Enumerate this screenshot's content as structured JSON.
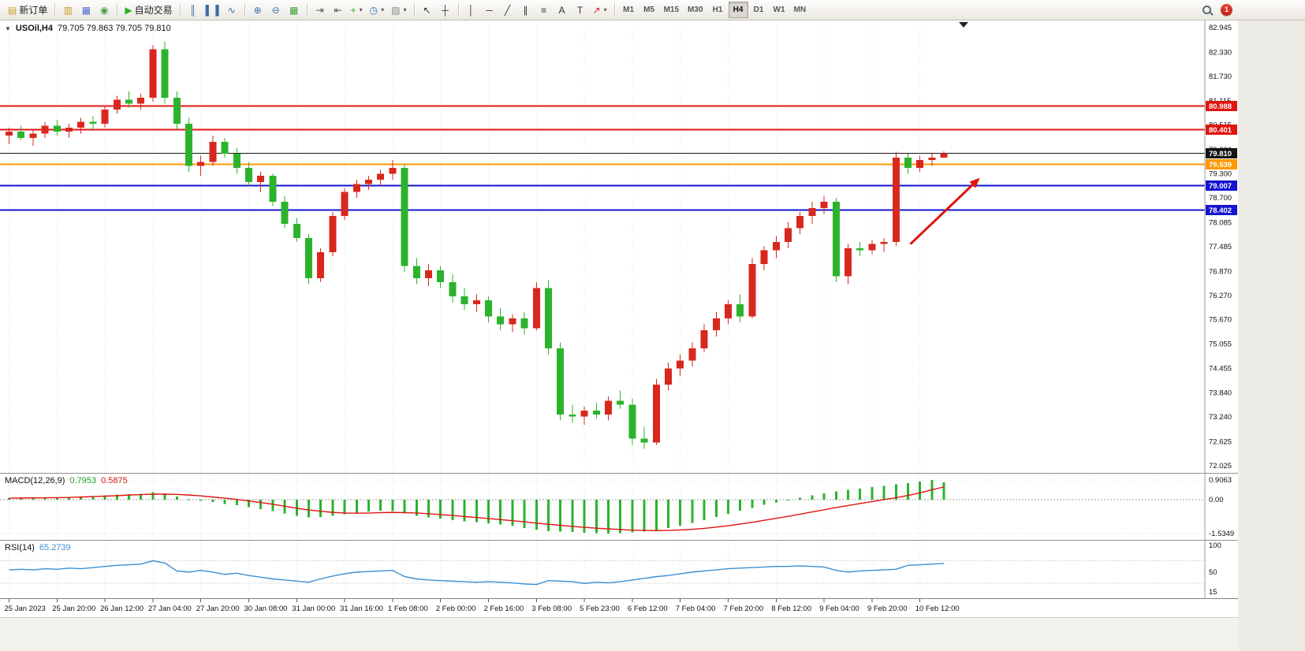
{
  "toolbar": {
    "badge": "1",
    "active_timeframe": "H4",
    "timeframes": [
      "M1",
      "M5",
      "M15",
      "M30",
      "H1",
      "H4",
      "D1",
      "W1",
      "MN"
    ],
    "groups": [
      {
        "items": [
          {
            "name": "new-order",
            "label": "新订单",
            "glyph": "▤",
            "color": "#c89b2a"
          }
        ]
      },
      {
        "items": [
          {
            "name": "charts",
            "glyph": "▥",
            "color": "#c89b2a"
          },
          {
            "name": "profiles",
            "glyph": "▦",
            "color": "#4a6fd4"
          },
          {
            "name": "data-window",
            "glyph": "◉",
            "color": "#4a9e4a"
          }
        ]
      },
      {
        "items": [
          {
            "name": "auto-trading",
            "label": "自动交易",
            "glyph": "▶",
            "color": "#2cb32c"
          }
        ]
      },
      {
        "items": [
          {
            "name": "bar-chart",
            "glyph": "║",
            "color": "#3a6ea5"
          },
          {
            "name": "candlestick-chart",
            "glyph": "▌▐",
            "color": "#3a6ea5"
          },
          {
            "name": "line-chart",
            "glyph": "∿",
            "color": "#3a6ea5"
          }
        ]
      },
      {
        "items": [
          {
            "name": "zoom-in",
            "glyph": "⊕",
            "color": "#3a6ea5"
          },
          {
            "name": "zoom-out",
            "glyph": "⊖",
            "color": "#3a6ea5"
          },
          {
            "name": "tile-windows",
            "glyph": "▦",
            "color": "#3aa53a"
          }
        ]
      },
      {
        "items": [
          {
            "name": "auto-scroll",
            "glyph": "⇥",
            "color": "#555555"
          },
          {
            "name": "chart-shift",
            "glyph": "⇤",
            "color": "#555555"
          },
          {
            "name": "indicators",
            "glyph": "+",
            "color": "#2cb32c",
            "caret": true
          },
          {
            "name": "periods",
            "glyph": "◷",
            "color": "#3a6ea5",
            "caret": true
          },
          {
            "name": "templates",
            "glyph": "▨",
            "color": "#8a8a8a",
            "caret": true
          }
        ]
      },
      {
        "items": [
          {
            "name": "cursor",
            "glyph": "↖",
            "color": "#333333"
          },
          {
            "name": "crosshair",
            "glyph": "┼",
            "color": "#333333"
          }
        ]
      },
      {
        "items": [
          {
            "name": "vertical-line",
            "glyph": "│",
            "color": "#333333"
          },
          {
            "name": "horizontal-line",
            "glyph": "─",
            "color": "#333333"
          },
          {
            "name": "trendline",
            "glyph": "╱",
            "color": "#333333"
          },
          {
            "name": "equidistant-channel",
            "glyph": "∥",
            "color": "#333333"
          },
          {
            "name": "fibonacci",
            "glyph": "≡",
            "color": "#333333"
          },
          {
            "name": "text",
            "glyph": "A",
            "color": "#333333"
          },
          {
            "name": "text-label",
            "glyph": "T",
            "color": "#333333"
          },
          {
            "name": "arrows",
            "glyph": "↗",
            "color": "#cc2222",
            "caret": true
          }
        ]
      }
    ]
  },
  "chart_data": {
    "type": "candlestick",
    "symbol": "USOil",
    "period": "H4",
    "header": {
      "collapse_glyph": "▼",
      "title": "USOil,H4",
      "ohlc": "79.705 79.863 79.705 79.810"
    },
    "current_bar": {
      "open": 79.705,
      "high": 79.863,
      "low": 79.705,
      "close": 79.81
    },
    "colors": {
      "up": "#d8281e",
      "down": "#2cb32c"
    },
    "price_max": 82.945,
    "price_min": 72.025,
    "price_axis_ticks": [
      "82.945",
      "82.330",
      "81.730",
      "81.115",
      "80.515",
      "79.900",
      "79.300",
      "78.700",
      "78.085",
      "77.485",
      "76.870",
      "76.270",
      "75.670",
      "75.055",
      "74.455",
      "73.840",
      "73.240",
      "72.625",
      "72.025"
    ],
    "time_ticks": [
      {
        "i": 0,
        "label": "25 Jan 2023"
      },
      {
        "i": 4,
        "label": "25 Jan 20:00"
      },
      {
        "i": 8,
        "label": "26 Jan 12:00"
      },
      {
        "i": 12,
        "label": "27 Jan 04:00"
      },
      {
        "i": 16,
        "label": "27 Jan 20:00"
      },
      {
        "i": 20,
        "label": "30 Jan 08:00"
      },
      {
        "i": 24,
        "label": "31 Jan 00:00"
      },
      {
        "i": 28,
        "label": "31 Jan 16:00"
      },
      {
        "i": 32,
        "label": "1 Feb 08:00"
      },
      {
        "i": 36,
        "label": "2 Feb 00:00"
      },
      {
        "i": 40,
        "label": "2 Feb 16:00"
      },
      {
        "i": 44,
        "label": "3 Feb 08:00"
      },
      {
        "i": 48,
        "label": "5 Feb 23:00"
      },
      {
        "i": 52,
        "label": "6 Feb 12:00"
      },
      {
        "i": 56,
        "label": "7 Feb 04:00"
      },
      {
        "i": 60,
        "label": "7 Feb 20:00"
      },
      {
        "i": 64,
        "label": "8 Feb 12:00"
      },
      {
        "i": 68,
        "label": "9 Feb 04:00"
      },
      {
        "i": 72,
        "label": "9 Feb 20:00"
      },
      {
        "i": 76,
        "label": "10 Feb 12:00"
      }
    ],
    "candles": [
      [
        80.25,
        80.45,
        80.05,
        80.35
      ],
      [
        80.35,
        80.5,
        80.15,
        80.2
      ],
      [
        80.2,
        80.4,
        80.0,
        80.3
      ],
      [
        80.3,
        80.6,
        80.2,
        80.5
      ],
      [
        80.5,
        80.65,
        80.25,
        80.35
      ],
      [
        80.35,
        80.55,
        80.2,
        80.45
      ],
      [
        80.45,
        80.7,
        80.3,
        80.6
      ],
      [
        80.6,
        80.75,
        80.4,
        80.55
      ],
      [
        80.55,
        81.0,
        80.45,
        80.9
      ],
      [
        80.9,
        81.25,
        80.8,
        81.15
      ],
      [
        81.15,
        81.35,
        80.95,
        81.05
      ],
      [
        81.05,
        81.3,
        80.9,
        81.2
      ],
      [
        81.2,
        82.5,
        81.1,
        82.4
      ],
      [
        82.4,
        82.6,
        81.05,
        81.2
      ],
      [
        81.2,
        81.35,
        80.4,
        80.55
      ],
      [
        80.55,
        80.7,
        79.35,
        79.5
      ],
      [
        79.5,
        79.75,
        79.25,
        79.6
      ],
      [
        79.6,
        80.25,
        79.5,
        80.1
      ],
      [
        80.1,
        80.2,
        79.7,
        79.8
      ],
      [
        79.8,
        79.95,
        79.3,
        79.45
      ],
      [
        79.45,
        79.6,
        79.0,
        79.1
      ],
      [
        79.1,
        79.35,
        78.85,
        79.25
      ],
      [
        79.25,
        79.3,
        78.5,
        78.6
      ],
      [
        78.6,
        78.75,
        77.95,
        78.05
      ],
      [
        78.05,
        78.2,
        77.6,
        77.7
      ],
      [
        77.7,
        77.8,
        76.55,
        76.7
      ],
      [
        76.7,
        77.45,
        76.6,
        77.35
      ],
      [
        77.35,
        78.35,
        77.25,
        78.25
      ],
      [
        78.25,
        78.95,
        78.15,
        78.85
      ],
      [
        78.85,
        79.15,
        78.7,
        79.05
      ],
      [
        79.05,
        79.25,
        78.9,
        79.15
      ],
      [
        79.15,
        79.4,
        79.0,
        79.3
      ],
      [
        79.3,
        79.65,
        79.15,
        79.45
      ],
      [
        79.45,
        79.55,
        76.85,
        77.0
      ],
      [
        77.0,
        77.2,
        76.55,
        76.7
      ],
      [
        76.7,
        77.05,
        76.5,
        76.9
      ],
      [
        76.9,
        77.0,
        76.45,
        76.6
      ],
      [
        76.6,
        76.8,
        76.1,
        76.25
      ],
      [
        76.25,
        76.45,
        75.9,
        76.05
      ],
      [
        76.05,
        76.3,
        75.85,
        76.15
      ],
      [
        76.15,
        76.25,
        75.6,
        75.75
      ],
      [
        75.75,
        75.95,
        75.4,
        75.55
      ],
      [
        75.55,
        75.8,
        75.35,
        75.7
      ],
      [
        75.7,
        75.85,
        75.3,
        75.45
      ],
      [
        75.45,
        76.6,
        75.4,
        76.45
      ],
      [
        76.45,
        76.65,
        74.8,
        74.95
      ],
      [
        74.95,
        75.1,
        73.15,
        73.3
      ],
      [
        73.3,
        73.55,
        73.1,
        73.25
      ],
      [
        73.25,
        73.5,
        73.05,
        73.4
      ],
      [
        73.4,
        73.6,
        73.2,
        73.3
      ],
      [
        73.3,
        73.75,
        73.15,
        73.65
      ],
      [
        73.65,
        73.9,
        73.45,
        73.55
      ],
      [
        73.55,
        73.7,
        72.55,
        72.7
      ],
      [
        72.7,
        73.0,
        72.45,
        72.6
      ],
      [
        72.6,
        74.2,
        72.55,
        74.05
      ],
      [
        74.05,
        74.6,
        73.9,
        74.45
      ],
      [
        74.45,
        74.8,
        74.25,
        74.65
      ],
      [
        74.65,
        75.1,
        74.5,
        74.95
      ],
      [
        74.95,
        75.55,
        74.85,
        75.4
      ],
      [
        75.4,
        75.85,
        75.25,
        75.7
      ],
      [
        75.7,
        76.15,
        75.55,
        76.05
      ],
      [
        76.05,
        76.3,
        75.6,
        75.75
      ],
      [
        75.75,
        77.2,
        75.7,
        77.05
      ],
      [
        77.05,
        77.5,
        76.9,
        77.4
      ],
      [
        77.4,
        77.75,
        77.2,
        77.6
      ],
      [
        77.6,
        78.1,
        77.45,
        77.95
      ],
      [
        77.95,
        78.35,
        77.8,
        78.25
      ],
      [
        78.25,
        78.6,
        78.05,
        78.45
      ],
      [
        78.45,
        78.75,
        78.3,
        78.6
      ],
      [
        78.6,
        78.7,
        76.6,
        76.75
      ],
      [
        76.75,
        77.55,
        76.55,
        77.45
      ],
      [
        77.45,
        77.6,
        77.25,
        77.4
      ],
      [
        77.4,
        77.65,
        77.3,
        77.55
      ],
      [
        77.55,
        77.7,
        77.35,
        77.6
      ],
      [
        77.6,
        79.85,
        77.5,
        79.7
      ],
      [
        79.7,
        79.8,
        79.3,
        79.45
      ],
      [
        79.45,
        79.75,
        79.35,
        79.65
      ],
      [
        79.65,
        79.8,
        79.5,
        79.7
      ],
      [
        79.705,
        79.863,
        79.705,
        79.81
      ]
    ],
    "h_lines": [
      {
        "name": "resistance-line-1",
        "price": 80.988,
        "label": "80.988",
        "color": "#e01410",
        "width": 2
      },
      {
        "name": "resistance-line-2",
        "price": 80.401,
        "label": "80.401",
        "color": "#e01410",
        "width": 2
      },
      {
        "name": "bid-price-line",
        "price": 79.81,
        "label": "79.810",
        "color": "#141414",
        "width": 1
      },
      {
        "name": "level-line-orange",
        "price": 79.539,
        "label": "79.539",
        "color": "#ff9800",
        "width": 2
      },
      {
        "name": "support-line-1",
        "price": 79.007,
        "label": "79.007",
        "color": "#1414cf",
        "width": 2
      },
      {
        "name": "support-line-2",
        "price": 78.402,
        "label": "78.402",
        "color": "#1414cf",
        "width": 2
      }
    ],
    "arrow": {
      "from": {
        "index": 75.2,
        "price": 77.55
      },
      "to": {
        "index": 81.0,
        "price": 79.2
      },
      "color": "#e01410",
      "width": 3
    },
    "macd": {
      "label": "MACD(12,26,9)",
      "value_main": "0.7953",
      "value_signal": "0.5875",
      "max": 0.9063,
      "min": -1.5349,
      "axis_labels": [
        "0.9063",
        "0.00",
        "-1.5349"
      ],
      "hist_color": "#2cb32c",
      "signal_color": "#e01410",
      "histogram": [
        0.08,
        0.1,
        0.09,
        0.1,
        0.12,
        0.14,
        0.15,
        0.17,
        0.2,
        0.24,
        0.26,
        0.28,
        0.35,
        0.3,
        0.15,
        0.02,
        -0.05,
        -0.1,
        -0.18,
        -0.25,
        -0.33,
        -0.42,
        -0.52,
        -0.62,
        -0.72,
        -0.8,
        -0.78,
        -0.72,
        -0.65,
        -0.58,
        -0.53,
        -0.5,
        -0.52,
        -0.62,
        -0.72,
        -0.8,
        -0.86,
        -0.92,
        -0.97,
        -1.02,
        -1.07,
        -1.12,
        -1.18,
        -1.28,
        -1.36,
        -1.42,
        -1.45,
        -1.47,
        -1.5,
        -1.52,
        -1.53,
        -1.52,
        -1.49,
        -1.44,
        -1.37,
        -1.28,
        -1.17,
        -1.05,
        -0.92,
        -0.78,
        -0.64,
        -0.5,
        -0.36,
        -0.23,
        -0.11,
        0.0,
        0.1,
        0.2,
        0.3,
        0.38,
        0.45,
        0.52,
        0.58,
        0.64,
        0.7,
        0.76,
        0.84,
        0.9063,
        0.7953
      ],
      "signal": [
        0.08,
        0.085,
        0.09,
        0.095,
        0.1,
        0.11,
        0.13,
        0.15,
        0.17,
        0.19,
        0.22,
        0.24,
        0.26,
        0.26,
        0.25,
        0.22,
        0.18,
        0.13,
        0.08,
        0.02,
        -0.05,
        -0.12,
        -0.2,
        -0.29,
        -0.38,
        -0.46,
        -0.52,
        -0.57,
        -0.6,
        -0.61,
        -0.6,
        -0.58,
        -0.57,
        -0.58,
        -0.6,
        -0.63,
        -0.67,
        -0.71,
        -0.76,
        -0.8,
        -0.85,
        -0.9,
        -0.95,
        -1.0,
        -1.06,
        -1.11,
        -1.16,
        -1.21,
        -1.25,
        -1.29,
        -1.32,
        -1.35,
        -1.38,
        -1.39,
        -1.4,
        -1.39,
        -1.37,
        -1.34,
        -1.3,
        -1.24,
        -1.18,
        -1.1,
        -1.02,
        -0.93,
        -0.84,
        -0.75,
        -0.65,
        -0.55,
        -0.45,
        -0.35,
        -0.26,
        -0.17,
        -0.08,
        0.01,
        0.1,
        0.2,
        0.32,
        0.46,
        0.5875
      ]
    },
    "rsi": {
      "label": "RSI(14)",
      "value": "65.2739",
      "max": 100,
      "min": 15,
      "axis_labels": [
        "100",
        "50",
        "15"
      ],
      "levels": [
        70,
        30
      ],
      "color": "#3e8ed0",
      "values": [
        54,
        55,
        54,
        56,
        55,
        57,
        56,
        58,
        60,
        62,
        63,
        64,
        70,
        66,
        52,
        50,
        53,
        50,
        46,
        48,
        44,
        41,
        38,
        36,
        34,
        32,
        38,
        43,
        47,
        50,
        51,
        52,
        53,
        42,
        38,
        36,
        35,
        34,
        33,
        32,
        33,
        32,
        31,
        29,
        28,
        35,
        34,
        33,
        30,
        32,
        31,
        33,
        36,
        39,
        42,
        44,
        47,
        50,
        52,
        54,
        56,
        57,
        58,
        59,
        60,
        60,
        61,
        60,
        59,
        53,
        50,
        52,
        53,
        54,
        55,
        62,
        63,
        64,
        65.2739
      ]
    }
  }
}
